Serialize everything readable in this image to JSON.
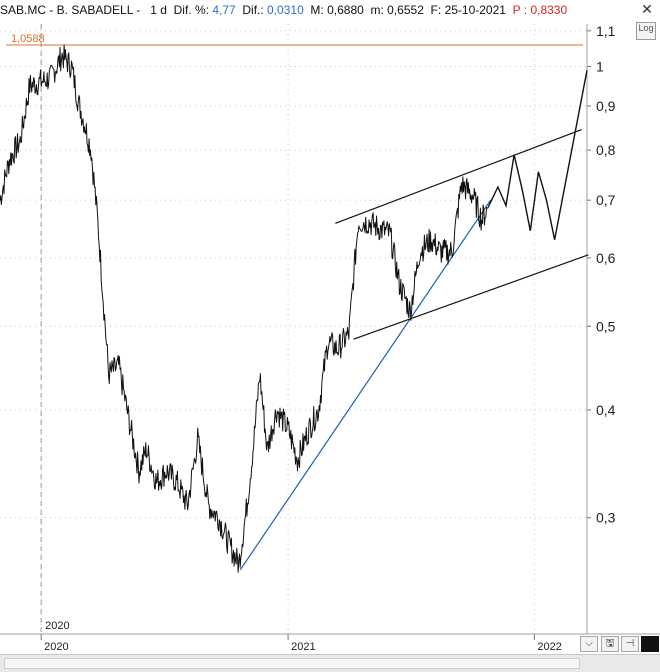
{
  "header": {
    "symbol": "SAB.MC - B. SABADELL -",
    "period": "1 d",
    "dif_pct_label": "Dif. %:",
    "dif_pct_value": "4,77",
    "dif_label": "Dif.:",
    "dif_value": "0,0310",
    "max_label": "M:",
    "max_value": "0,6880",
    "min_label": "m:",
    "min_value": "0,6552",
    "date_label": "F:",
    "date_value": "25-10-2021",
    "price_label": "P :",
    "price_value": "0,8330",
    "close_glyph": "✕"
  },
  "log_button": "Log",
  "toolbar": {
    "collapse_glyph": "⌵",
    "save_glyph": "🖫",
    "pin_glyph": "⊣"
  },
  "colors": {
    "price": "#111111",
    "resistance": "#e07030",
    "trendline": "#1e5fb4",
    "channel": "#111111",
    "grid": "#c8c8c8"
  },
  "chart_data": {
    "type": "line",
    "scale": "log",
    "ylim": [
      0.22,
      1.12
    ],
    "xlim": [
      "2019-11-01",
      "2022-03-20"
    ],
    "y_ticks": [
      "1,1",
      "1",
      "0,9",
      "0,8",
      "0,7",
      "0,6",
      "0,5",
      "0,4",
      "0,3"
    ],
    "y_tick_values": [
      1.1,
      1.0,
      0.9,
      0.8,
      0.7,
      0.6,
      0.5,
      0.4,
      0.3
    ],
    "x_ticks": [
      "2020",
      "2021",
      "2022"
    ],
    "x_tick_values": [
      "2020-01-01",
      "2021-01-01",
      "2022-01-01"
    ],
    "vertical_marker": {
      "label": "2020",
      "x": "2020-01-01"
    },
    "grid": true,
    "annotations": [
      {
        "type": "hline",
        "label": "1,0588",
        "y": 1.0588
      }
    ],
    "series": [
      {
        "x": [
          "2019-11-01",
          "2019-11-15",
          "2019-12-01",
          "2019-12-15",
          "2020-01-01",
          "2020-01-15",
          "2020-02-01",
          "2020-02-15",
          "2020-02-25",
          "2020-03-05",
          "2020-03-15",
          "2020-03-25",
          "2020-04-10",
          "2020-04-25",
          "2020-05-10",
          "2020-05-25",
          "2020-06-05",
          "2020-06-20",
          "2020-07-05",
          "2020-07-20",
          "2020-08-05",
          "2020-08-20",
          "2020-09-05",
          "2020-09-20",
          "2020-10-05",
          "2020-10-20",
          "2020-11-01",
          "2020-11-10",
          "2020-11-20",
          "2020-12-01",
          "2020-12-15",
          "2021-01-01",
          "2021-01-15",
          "2021-02-01",
          "2021-02-15",
          "2021-03-01",
          "2021-03-15",
          "2021-04-01",
          "2021-04-15",
          "2021-05-01",
          "2021-05-15",
          "2021-06-01",
          "2021-06-15",
          "2021-07-01",
          "2021-07-15",
          "2021-08-01",
          "2021-08-15",
          "2021-09-01",
          "2021-09-15",
          "2021-10-01",
          "2021-10-15",
          "2021-10-25"
        ],
        "values": [
          0.7,
          0.78,
          0.82,
          0.95,
          0.96,
          0.97,
          1.03,
          1.0,
          0.91,
          0.86,
          0.8,
          0.66,
          0.44,
          0.45,
          0.39,
          0.34,
          0.36,
          0.33,
          0.34,
          0.33,
          0.31,
          0.37,
          0.31,
          0.3,
          0.28,
          0.265,
          0.31,
          0.36,
          0.44,
          0.36,
          0.4,
          0.38,
          0.35,
          0.38,
          0.4,
          0.48,
          0.47,
          0.49,
          0.66,
          0.66,
          0.65,
          0.64,
          0.56,
          0.52,
          0.61,
          0.63,
          0.61,
          0.61,
          0.73,
          0.71,
          0.665,
          0.688
        ]
      }
    ],
    "trendline": {
      "x": [
        "2020-10-22",
        "2021-10-28"
      ],
      "y": [
        0.261,
        0.7
      ]
    },
    "channel_upper": {
      "x": [
        "2021-03-12",
        "2022-03-12"
      ],
      "y": [
        0.658,
        0.845
      ]
    },
    "channel_lower": {
      "x": [
        "2021-04-08",
        "2022-03-22"
      ],
      "y": [
        0.483,
        0.605
      ]
    },
    "projection": {
      "x": [
        "2021-10-25",
        "2021-11-08",
        "2021-11-20",
        "2021-12-02",
        "2021-12-14",
        "2021-12-26",
        "2022-01-07",
        "2022-01-19",
        "2022-01-31",
        "2022-03-20"
      ],
      "y": [
        0.688,
        0.725,
        0.69,
        0.79,
        0.72,
        0.645,
        0.755,
        0.7,
        0.63,
        0.99
      ]
    }
  }
}
